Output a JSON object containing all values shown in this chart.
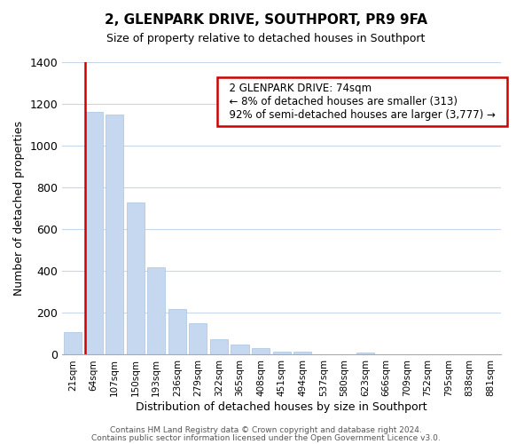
{
  "title": "2, GLENPARK DRIVE, SOUTHPORT, PR9 9FA",
  "subtitle": "Size of property relative to detached houses in Southport",
  "xlabel": "Distribution of detached houses by size in Southport",
  "ylabel": "Number of detached properties",
  "bar_labels": [
    "21sqm",
    "64sqm",
    "107sqm",
    "150sqm",
    "193sqm",
    "236sqm",
    "279sqm",
    "322sqm",
    "365sqm",
    "408sqm",
    "451sqm",
    "494sqm",
    "537sqm",
    "580sqm",
    "623sqm",
    "666sqm",
    "709sqm",
    "752sqm",
    "795sqm",
    "838sqm",
    "881sqm"
  ],
  "bar_values": [
    110,
    1160,
    1150,
    730,
    420,
    220,
    150,
    75,
    50,
    30,
    15,
    15,
    0,
    0,
    10,
    0,
    0,
    0,
    0,
    0,
    0
  ],
  "bar_color": "#c5d8f0",
  "bar_edge_color": "#a8c4e0",
  "marker_line_color": "#cc0000",
  "red_line_x": 0.575,
  "annotation_line1": "2 GLENPARK DRIVE: 74sqm",
  "annotation_line2": "← 8% of detached houses are smaller (313)",
  "annotation_line3": "92% of semi-detached houses are larger (3,777) →",
  "annotation_box_color": "#ffffff",
  "annotation_box_edge": "#cc0000",
  "ylim": [
    0,
    1400
  ],
  "yticks": [
    0,
    200,
    400,
    600,
    800,
    1000,
    1200,
    1400
  ],
  "footer_line1": "Contains HM Land Registry data © Crown copyright and database right 2024.",
  "footer_line2": "Contains public sector information licensed under the Open Government Licence v3.0.",
  "bg_color": "#ffffff",
  "grid_color": "#c8d8e8",
  "figsize": [
    6.0,
    5.0
  ],
  "dpi": 100
}
